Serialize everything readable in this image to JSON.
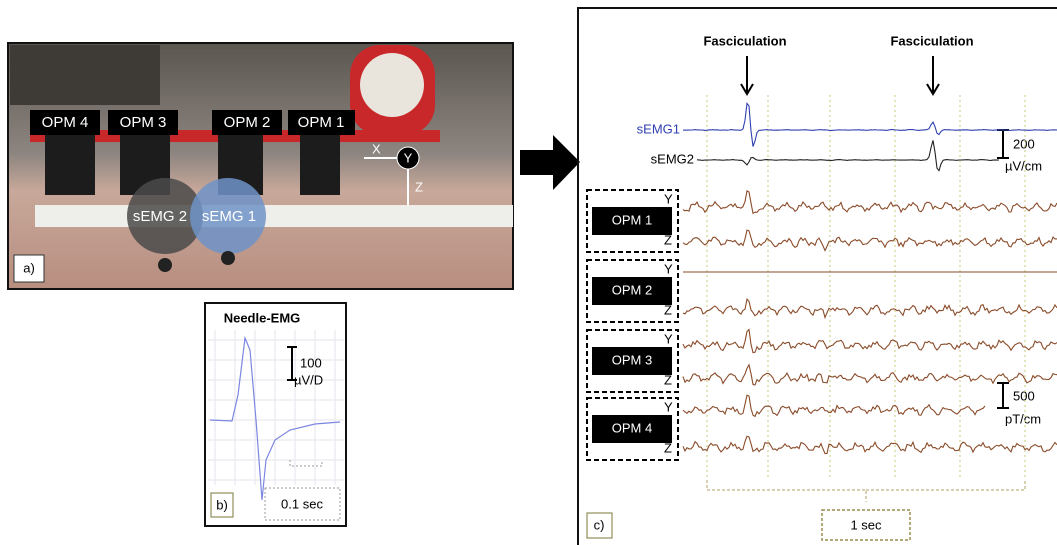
{
  "panel_a": {
    "label": "a)",
    "sensors": [
      "OPM 4",
      "OPM 3",
      "OPM 2",
      "OPM 1"
    ],
    "electrodes": [
      "sEMG 2",
      "sEMG 1"
    ],
    "axes": [
      "X",
      "Y",
      "Z"
    ]
  },
  "panel_b": {
    "title": "Needle-EMG",
    "scale_value": "100",
    "scale_unit": "µV/D",
    "time_scale": "0.1 sec",
    "label": "b)"
  },
  "panel_c": {
    "annotations": [
      "Fasciculation",
      "Fasciculation"
    ],
    "semg_channels": [
      "sEMG1",
      "sEMG2"
    ],
    "semg_scale": {
      "value": "200",
      "unit": "µV/cm"
    },
    "opm_sensors": [
      {
        "name": "OPM 1",
        "axes": [
          "Y",
          "Z"
        ]
      },
      {
        "name": "OPM 2",
        "axes": [
          "Y",
          "Z"
        ]
      },
      {
        "name": "OPM 3",
        "axes": [
          "Y",
          "Z"
        ]
      },
      {
        "name": "OPM 4",
        "axes": [
          "Y",
          "Z"
        ]
      }
    ],
    "opm_scale": {
      "value": "500",
      "unit": "pT/cm"
    },
    "time_scale": "1 sec",
    "label": "c)"
  }
}
